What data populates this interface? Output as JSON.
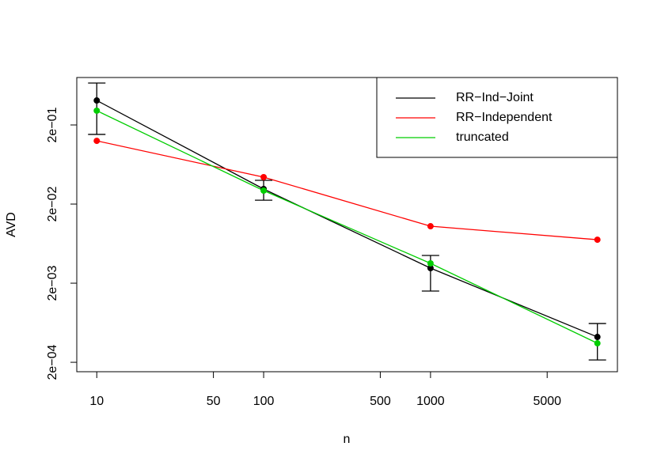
{
  "chart_data": {
    "type": "line",
    "x_label": "n",
    "y_label": "AVD",
    "x": [
      10,
      100,
      1000,
      10000
    ],
    "series": [
      {
        "name": "RR−Ind−Joint",
        "color": "#000000",
        "values": [
          0.408,
          0.031,
          0.0031,
          0.000418
        ],
        "lower": [
          0.152,
          0.0224,
          0.00159,
          0.000214
        ],
        "upper": [
          0.678,
          0.0399,
          0.00448,
          0.000618
        ]
      },
      {
        "name": "RR−Independent",
        "color": "#ff0000",
        "values": [
          0.126,
          0.0438,
          0.0105,
          0.00709
        ]
      },
      {
        "name": "truncated",
        "color": "#00cd00",
        "values": [
          0.303,
          0.0296,
          0.00356,
          0.000348
        ]
      }
    ],
    "x_log": true,
    "y_log": true,
    "xlim": [
      7.59,
      13183
    ],
    "xticks": [
      10,
      50,
      100,
      500,
      1000,
      5000
    ],
    "ylim": [
      0.000152,
      0.796
    ],
    "yticks": [
      {
        "value": 0.2,
        "label": "2e−01"
      },
      {
        "value": 0.02,
        "label": "2e−02"
      },
      {
        "value": 0.002,
        "label": "2e−03"
      },
      {
        "value": 0.0002,
        "label": "2e−04"
      }
    ],
    "legend": "top-right"
  }
}
